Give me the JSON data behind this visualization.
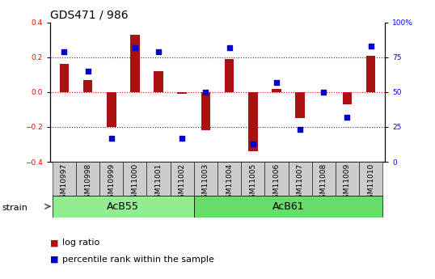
{
  "title": "GDS471 / 986",
  "samples": [
    "GSM10997",
    "GSM10998",
    "GSM10999",
    "GSM11000",
    "GSM11001",
    "GSM11002",
    "GSM11003",
    "GSM11004",
    "GSM11005",
    "GSM11006",
    "GSM11007",
    "GSM11008",
    "GSM11009",
    "GSM11010"
  ],
  "log_ratio": [
    0.16,
    0.07,
    -0.2,
    0.33,
    0.12,
    -0.01,
    -0.22,
    0.19,
    -0.34,
    0.02,
    -0.15,
    0.0,
    -0.07,
    0.21
  ],
  "percentile_rank": [
    79,
    65,
    17,
    82,
    79,
    17,
    50,
    82,
    13,
    57,
    23,
    50,
    32,
    83
  ],
  "strain_groups": [
    {
      "label": "AcB55",
      "start": 0,
      "end": 5,
      "color": "#90EE90"
    },
    {
      "label": "AcB61",
      "start": 6,
      "end": 13,
      "color": "#66DD66"
    }
  ],
  "ylim": [
    -0.4,
    0.4
  ],
  "y2lim": [
    0,
    100
  ],
  "yticks": [
    -0.4,
    -0.2,
    0.0,
    0.2,
    0.4
  ],
  "y2ticks": [
    0,
    25,
    50,
    75,
    100
  ],
  "hlines_dotted": [
    -0.2,
    0.2
  ],
  "hline_red_dot": 0.0,
  "bar_color_red": "#AA1111",
  "bar_color_blue": "#0000CC",
  "bar_width": 0.4,
  "dot_size": 22,
  "background_color": "#ffffff",
  "gray_box_color": "#CCCCCC",
  "title_fontsize": 10,
  "tick_fontsize": 6.5,
  "label_fontsize": 8,
  "strain_label_fontsize": 9,
  "legend_fontsize": 8
}
